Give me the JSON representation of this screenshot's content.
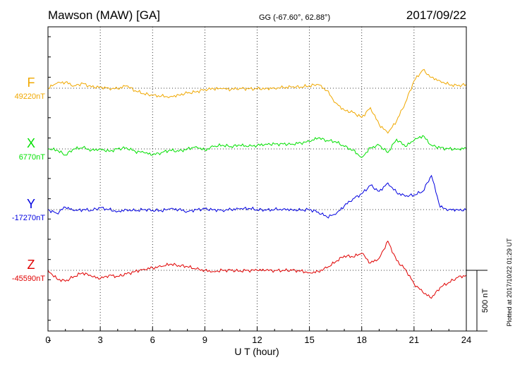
{
  "header": {
    "station": "Mawson (MAW)  [GA]",
    "coords": "GG (-67.60°,  62.88°)",
    "date": "2017/09/22"
  },
  "footer": {
    "plotted": "Plotted at 2017/10/22 01:29 UT",
    "scale_label": "500 nT"
  },
  "chart_data": {
    "type": "line",
    "title": "Mawson (MAW)  [GA]",
    "xlabel": "U T (hour)",
    "xlim": [
      0,
      24
    ],
    "xticks": [
      "0",
      "3",
      "6",
      "9",
      "12",
      "15",
      "18",
      "21",
      "24"
    ],
    "grid": true,
    "scale_bar_nT": 500,
    "series": [
      {
        "name": "F",
        "baseline_label": "49220nT",
        "baseline_nT": 49220,
        "color": "#f0a800",
        "x": [
          0,
          0.5,
          1,
          1.5,
          2,
          2.5,
          3,
          3.5,
          4,
          4.5,
          5,
          5.5,
          6,
          6.5,
          7,
          7.5,
          8,
          8.5,
          9,
          9.5,
          10,
          10.5,
          11,
          11.5,
          12,
          12.5,
          13,
          13.5,
          14,
          14.5,
          15,
          15.5,
          16,
          16.5,
          17,
          17.5,
          18,
          18.5,
          19,
          19.5,
          20,
          20.5,
          21,
          21.5,
          22,
          22.5,
          23,
          23.5,
          24
        ],
        "y": [
          49220,
          49260,
          49270,
          49240,
          49260,
          49230,
          49230,
          49220,
          49215,
          49240,
          49200,
          49175,
          49160,
          49155,
          49150,
          49165,
          49180,
          49190,
          49210,
          49215,
          49215,
          49210,
          49220,
          49215,
          49215,
          49218,
          49222,
          49225,
          49230,
          49230,
          49240,
          49250,
          49200,
          49100,
          49040,
          49020,
          48980,
          49060,
          48920,
          48850,
          48950,
          49100,
          49280,
          49370,
          49310,
          49280,
          49250,
          49240,
          49250
        ]
      },
      {
        "name": "X",
        "baseline_label": "6770nT",
        "baseline_nT": 6770,
        "color": "#00e000",
        "x": [
          0,
          0.5,
          1,
          1.5,
          2,
          2.5,
          3,
          3.5,
          4,
          4.5,
          5,
          5.5,
          6,
          6.5,
          7,
          7.5,
          8,
          8.5,
          9,
          9.5,
          10,
          10.5,
          11,
          11.5,
          12,
          12.5,
          13,
          13.5,
          14,
          14.5,
          15,
          15.5,
          16,
          16.5,
          17,
          17.5,
          18,
          18.5,
          19,
          19.5,
          20,
          20.5,
          21,
          21.5,
          22,
          22.5,
          23,
          23.5,
          24
        ],
        "y": [
          6770,
          6760,
          6720,
          6770,
          6780,
          6760,
          6770,
          6750,
          6770,
          6780,
          6750,
          6740,
          6720,
          6740,
          6760,
          6750,
          6770,
          6790,
          6760,
          6790,
          6800,
          6790,
          6800,
          6790,
          6800,
          6810,
          6810,
          6810,
          6810,
          6820,
          6830,
          6860,
          6840,
          6830,
          6790,
          6760,
          6700,
          6780,
          6800,
          6740,
          6850,
          6790,
          6840,
          6880,
          6800,
          6780,
          6770,
          6770,
          6775
        ]
      },
      {
        "name": "Y",
        "baseline_label": "-17270nT",
        "baseline_nT": -17270,
        "color": "#0000e0",
        "x": [
          0,
          0.5,
          1,
          1.5,
          2,
          2.5,
          3,
          3.5,
          4,
          4.5,
          5,
          5.5,
          6,
          6.5,
          7,
          7.5,
          8,
          8.5,
          9,
          9.5,
          10,
          10.5,
          11,
          11.5,
          12,
          12.5,
          13,
          13.5,
          14,
          14.5,
          15,
          15.5,
          16,
          16.5,
          17,
          17.5,
          18,
          18.5,
          19,
          19.5,
          20,
          20.5,
          21,
          21.5,
          22,
          22.5,
          23,
          23.5,
          24
        ],
        "y": [
          -17270,
          -17300,
          -17250,
          -17280,
          -17270,
          -17275,
          -17255,
          -17270,
          -17285,
          -17270,
          -17280,
          -17270,
          -17275,
          -17280,
          -17265,
          -17270,
          -17285,
          -17270,
          -17265,
          -17270,
          -17275,
          -17270,
          -17265,
          -17260,
          -17270,
          -17275,
          -17270,
          -17265,
          -17270,
          -17275,
          -17270,
          -17290,
          -17330,
          -17310,
          -17240,
          -17180,
          -17140,
          -17070,
          -17120,
          -17050,
          -17130,
          -17160,
          -17150,
          -17120,
          -16990,
          -17250,
          -17270,
          -17270,
          -17275
        ]
      },
      {
        "name": "Z",
        "baseline_label": "-45590nT",
        "baseline_nT": -45590,
        "color": "#e00000",
        "x": [
          0,
          0.5,
          1,
          1.5,
          2,
          2.5,
          3,
          3.5,
          4,
          4.5,
          5,
          5.5,
          6,
          6.5,
          7,
          7.5,
          8,
          8.5,
          9,
          9.5,
          10,
          10.5,
          11,
          11.5,
          12,
          12.5,
          13,
          13.5,
          14,
          14.5,
          15,
          15.5,
          16,
          16.5,
          17,
          17.5,
          18,
          18.5,
          19,
          19.5,
          20,
          20.5,
          21,
          21.5,
          22,
          22.5,
          23,
          23.5,
          24
        ],
        "y": [
          -45590,
          -45660,
          -45680,
          -45640,
          -45610,
          -45640,
          -45660,
          -45630,
          -45640,
          -45620,
          -45600,
          -45580,
          -45570,
          -45560,
          -45540,
          -45550,
          -45560,
          -45580,
          -45590,
          -45600,
          -45590,
          -45590,
          -45595,
          -45590,
          -45590,
          -45590,
          -45592,
          -45590,
          -45590,
          -45595,
          -45610,
          -45600,
          -45570,
          -45520,
          -45470,
          -45480,
          -45450,
          -45530,
          -45490,
          -45350,
          -45510,
          -45580,
          -45700,
          -45770,
          -45820,
          -45730,
          -45690,
          -45650,
          -45630
        ]
      }
    ]
  }
}
